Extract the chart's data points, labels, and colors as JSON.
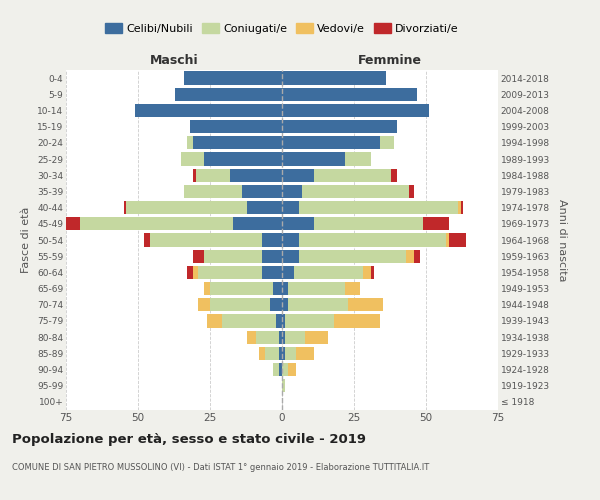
{
  "age_groups": [
    "100+",
    "95-99",
    "90-94",
    "85-89",
    "80-84",
    "75-79",
    "70-74",
    "65-69",
    "60-64",
    "55-59",
    "50-54",
    "45-49",
    "40-44",
    "35-39",
    "30-34",
    "25-29",
    "20-24",
    "15-19",
    "10-14",
    "5-9",
    "0-4"
  ],
  "birth_years": [
    "≤ 1918",
    "1919-1923",
    "1924-1928",
    "1929-1933",
    "1934-1938",
    "1939-1943",
    "1944-1948",
    "1949-1953",
    "1954-1958",
    "1959-1963",
    "1964-1968",
    "1969-1973",
    "1974-1978",
    "1979-1983",
    "1984-1988",
    "1989-1993",
    "1994-1998",
    "1999-2003",
    "2004-2008",
    "2009-2013",
    "2014-2018"
  ],
  "colors": {
    "celibe": "#3d6d9e",
    "coniugato": "#c5d8a0",
    "vedovo": "#f0c060",
    "divorziato": "#c0282a"
  },
  "maschi": {
    "celibe": [
      0,
      0,
      1,
      1,
      1,
      2,
      4,
      3,
      7,
      7,
      7,
      17,
      12,
      14,
      18,
      27,
      31,
      32,
      51,
      37,
      34
    ],
    "coniugato": [
      0,
      0,
      2,
      5,
      8,
      19,
      21,
      22,
      22,
      20,
      39,
      53,
      42,
      20,
      12,
      8,
      2,
      0,
      0,
      0,
      0
    ],
    "vedovo": [
      0,
      0,
      0,
      2,
      3,
      5,
      4,
      2,
      2,
      0,
      0,
      0,
      0,
      0,
      0,
      0,
      0,
      0,
      0,
      0,
      0
    ],
    "divorziato": [
      0,
      0,
      0,
      0,
      0,
      0,
      0,
      0,
      2,
      4,
      2,
      5,
      1,
      0,
      1,
      0,
      0,
      0,
      0,
      0,
      0
    ]
  },
  "femmine": {
    "celibe": [
      0,
      0,
      0,
      1,
      1,
      1,
      2,
      2,
      4,
      6,
      6,
      11,
      6,
      7,
      11,
      22,
      34,
      40,
      51,
      47,
      36
    ],
    "coniugato": [
      0,
      1,
      2,
      4,
      7,
      17,
      21,
      20,
      24,
      37,
      51,
      38,
      55,
      37,
      27,
      9,
      5,
      0,
      0,
      0,
      0
    ],
    "vedovo": [
      0,
      0,
      3,
      6,
      8,
      16,
      12,
      5,
      3,
      3,
      1,
      0,
      1,
      0,
      0,
      0,
      0,
      0,
      0,
      0,
      0
    ],
    "divorziato": [
      0,
      0,
      0,
      0,
      0,
      0,
      0,
      0,
      1,
      2,
      6,
      9,
      1,
      2,
      2,
      0,
      0,
      0,
      0,
      0,
      0
    ]
  },
  "xlim": 75,
  "title": "Popolazione per età, sesso e stato civile - 2019",
  "subtitle": "COMUNE DI SAN PIETRO MUSSOLINO (VI) - Dati ISTAT 1° gennaio 2019 - Elaborazione TUTTITALIA.IT",
  "ylabel_left": "Fasce di età",
  "ylabel_right": "Anni di nascita",
  "xlabel_left": "Maschi",
  "xlabel_right": "Femmine",
  "legend_labels": [
    "Celibi/Nubili",
    "Coniugati/e",
    "Vedovi/e",
    "Divorziati/e"
  ],
  "bg_color": "#f0f0eb",
  "plot_bg": "#ffffff"
}
